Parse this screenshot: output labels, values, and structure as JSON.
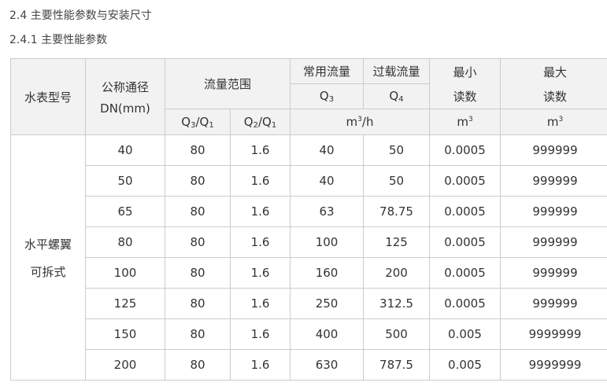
{
  "headings": {
    "section": "2.4 主要性能参数与安装尺寸",
    "subsection": "2.4.1 主要性能参数"
  },
  "table": {
    "headers": {
      "model": "水表型号",
      "dn_line1": "公称通径",
      "dn_line2": "DN(mm)",
      "flow_range": "流量范围",
      "q3_label": "常用流量",
      "q3_sym": "Q",
      "q3_sub": "3",
      "q4_label": "过载流量",
      "q4_sym": "Q",
      "q4_sub": "4",
      "min_line1": "最小",
      "min_line2": "读数",
      "max_line1": "最大",
      "max_line2": "读数",
      "q3q1": {
        "a": "Q",
        "as": "3",
        "b": "/Q",
        "bs": "1"
      },
      "q2q1": {
        "a": "Q",
        "as": "2",
        "b": "/Q",
        "bs": "1"
      },
      "flow_unit": {
        "base": "m",
        "exp": "3",
        "rest": "/h"
      },
      "min_unit": {
        "base": "m",
        "exp": "3"
      },
      "max_unit": {
        "base": "m",
        "exp": "3"
      }
    },
    "model_line1": "水平螺翼",
    "model_line2": "可拆式",
    "rows": [
      [
        "40",
        "80",
        "1.6",
        "40",
        "50",
        "0.0005",
        "999999"
      ],
      [
        "50",
        "80",
        "1.6",
        "40",
        "50",
        "0.0005",
        "999999"
      ],
      [
        "65",
        "80",
        "1.6",
        "63",
        "78.75",
        "0.0005",
        "999999"
      ],
      [
        "80",
        "80",
        "1.6",
        "100",
        "125",
        "0.0005",
        "999999"
      ],
      [
        "100",
        "80",
        "1.6",
        "160",
        "200",
        "0.0005",
        "999999"
      ],
      [
        "125",
        "80",
        "1.6",
        "250",
        "312.5",
        "0.0005",
        "999999"
      ],
      [
        "150",
        "80",
        "1.6",
        "400",
        "500",
        "0.005",
        "9999999"
      ],
      [
        "200",
        "80",
        "1.6",
        "630",
        "787.5",
        "0.005",
        "9999999"
      ]
    ]
  }
}
